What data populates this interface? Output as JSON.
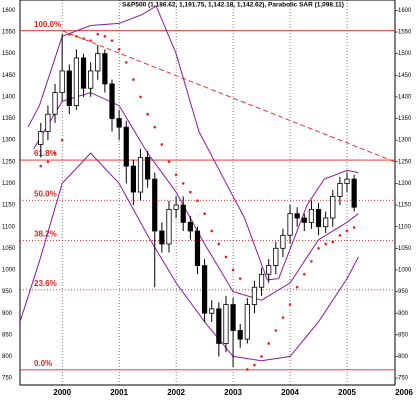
{
  "chart_data": {
    "type": "candlestick",
    "title": "S&P500 (1,186.62, 1,191.75, 1,142.18, 1,142.62), Parabolic SAR (1,098.11)",
    "x": [
      1999.625,
      1999.75,
      1999.875,
      2000.0,
      2000.125,
      2000.25,
      2000.375,
      2000.5,
      2000.625,
      2000.75,
      2000.875,
      2001.0,
      2001.125,
      2001.25,
      2001.375,
      2001.5,
      2001.625,
      2001.75,
      2001.875,
      2002.0,
      2002.125,
      2002.25,
      2002.375,
      2002.5,
      2002.625,
      2002.75,
      2002.875,
      2003.0,
      2003.125,
      2003.25,
      2003.375,
      2003.5,
      2003.625,
      2003.75,
      2003.875,
      2004.0,
      2004.125,
      2004.25,
      2004.375,
      2004.5,
      2004.625,
      2004.75,
      2004.875,
      2005.0,
      2005.125
    ],
    "open": [
      1290,
      1320,
      1360,
      1410,
      1460,
      1380,
      1490,
      1420,
      1460,
      1500,
      1430,
      1350,
      1330,
      1240,
      1180,
      1260,
      1210,
      1090,
      1060,
      1140,
      1150,
      1110,
      1090,
      1010,
      900,
      910,
      830,
      920,
      860,
      840,
      920,
      960,
      990,
      1010,
      1050,
      1080,
      1130,
      1120,
      1110,
      1140,
      1100,
      1120,
      1170,
      1200,
      1210
    ],
    "high": [
      1340,
      1380,
      1430,
      1545,
      1475,
      1510,
      1500,
      1480,
      1520,
      1510,
      1440,
      1370,
      1345,
      1255,
      1280,
      1275,
      1225,
      1110,
      1160,
      1170,
      1170,
      1125,
      1100,
      1025,
      930,
      925,
      940,
      935,
      875,
      935,
      975,
      1005,
      1025,
      1065,
      1095,
      1150,
      1145,
      1130,
      1160,
      1155,
      1135,
      1185,
      1215,
      1225,
      1220
    ],
    "low": [
      1260,
      1300,
      1340,
      1390,
      1360,
      1370,
      1400,
      1400,
      1440,
      1410,
      1320,
      1300,
      1200,
      1150,
      1160,
      1190,
      960,
      1040,
      1040,
      1120,
      1090,
      1070,
      990,
      880,
      880,
      800,
      810,
      775,
      820,
      830,
      900,
      940,
      970,
      990,
      1030,
      1060,
      1100,
      1090,
      1095,
      1080,
      1085,
      1100,
      1150,
      1180,
      1135
    ],
    "close": [
      1320,
      1360,
      1410,
      1460,
      1380,
      1490,
      1420,
      1460,
      1500,
      1430,
      1350,
      1330,
      1240,
      1180,
      1260,
      1210,
      1090,
      1060,
      1140,
      1150,
      1110,
      1090,
      1010,
      900,
      910,
      830,
      920,
      860,
      840,
      920,
      960,
      990,
      1010,
      1050,
      1080,
      1130,
      1120,
      1110,
      1140,
      1100,
      1120,
      1170,
      1200,
      1210,
      1145
    ],
    "up_color": "#ffffff",
    "down_color": "#000000",
    "sar": {
      "color": "#e8201c",
      "values": [
        1240,
        1250,
        1270,
        1300,
        1545,
        1540,
        1535,
        1530,
        1545,
        1540,
        1530,
        1510,
        1480,
        1440,
        1400,
        1360,
        1330,
        1290,
        1250,
        1220,
        1200,
        1180,
        1160,
        1130,
        1090,
        1060,
        1030,
        1000,
        980,
        770,
        780,
        800,
        830,
        860,
        890,
        920,
        960,
        990,
        1020,
        1050,
        1060,
        1065,
        1080,
        1090,
        1098.11
      ]
    },
    "bands": [
      {
        "color": "#8b1a9b",
        "x": [
          1999.4,
          1999.6,
          2000.0,
          2000.5,
          2001.0,
          2001.4,
          2001.65,
          2002.0,
          2002.4,
          2002.8,
          2003.2,
          2003.6,
          2003.8,
          2004.3,
          2004.6,
          2005.0,
          2005.2
        ],
        "values": [
          1330,
          1380,
          1540,
          1565,
          1570,
          1590,
          1610,
          1500,
          1320,
          1220,
          1120,
          977,
          980,
          1150,
          1210,
          1230,
          1225
        ]
      },
      {
        "color": "#8b1a9b",
        "x": [
          1999.5,
          2000.0,
          2000.5,
          2001.0,
          2001.5,
          2002.0,
          2002.5,
          2003.0,
          2003.5,
          2004.0,
          2004.5,
          2005.0,
          2005.2
        ],
        "values": [
          1280,
          1390,
          1410,
          1380,
          1270,
          1180,
          1060,
          950,
          930,
          970,
          1070,
          1110,
          1130
        ]
      },
      {
        "color": "#8b1a9b",
        "x": [
          1999.26,
          1999.6,
          2000.0,
          2000.5,
          2001.0,
          2001.5,
          2002.0,
          2002.5,
          2003.0,
          2003.5,
          2004.0,
          2004.5,
          2005.0,
          2005.2
        ],
        "values": [
          880,
          1020,
          1200,
          1270,
          1200,
          1080,
          970,
          880,
          800,
          790,
          800,
          880,
          980,
          1030
        ]
      }
    ],
    "fib_color": "#e8201c",
    "fib_levels": [
      {
        "label": "100.0%",
        "value": 1553,
        "style": "solid"
      },
      {
        "label": "61.8%",
        "value": 1254,
        "style": "solid"
      },
      {
        "label": "50.0%",
        "value": 1161,
        "style": "dotted"
      },
      {
        "label": "38.2%",
        "value": 1068,
        "style": "dotted"
      },
      {
        "label": "23.6%",
        "value": 954,
        "style": "dotted"
      },
      {
        "label": "0.0%",
        "value": 769,
        "style": "solid"
      }
    ],
    "trendline": {
      "color": "#e8201c",
      "x": [
        2000.0,
        2005.84
      ],
      "values": [
        1553,
        1250
      ]
    },
    "xlim": [
      1999.26,
      2006.0
    ],
    "ylim": [
      734,
      1624
    ],
    "xticks": [
      2000,
      2001,
      2002,
      2003,
      2004,
      2005,
      2006
    ],
    "yticks": [
      750,
      800,
      850,
      900,
      950,
      1000,
      1050,
      1100,
      1150,
      1200,
      1250,
      1300,
      1350,
      1400,
      1450,
      1500,
      1550,
      1600
    ],
    "grid": true
  }
}
